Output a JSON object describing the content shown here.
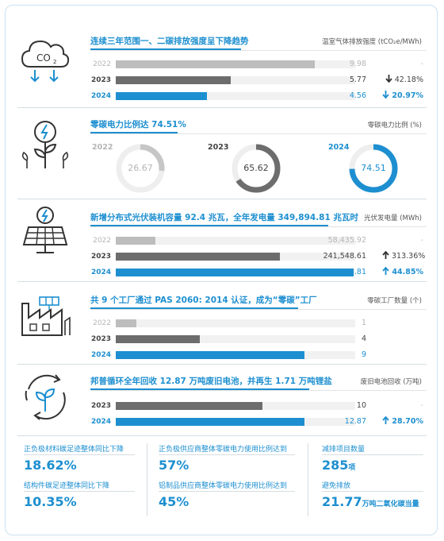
{
  "colors": {
    "accent": "#1d8fd0",
    "grey_2022": "#bdbdbd",
    "grey_2023": "#6d6d6d",
    "text_dark": "#444444"
  },
  "icons": [
    "co2-cloud-icon",
    "green-energy-plant-icon",
    "solar-panel-icon",
    "factory-icon",
    "recycle-plant-icon"
  ],
  "sections": {
    "emission": {
      "title": "连续三年范围一、二碳排放强度呈下降趋势",
      "unit": "温室气体排放强度 (tCO₂e/MWh)"
    },
    "renewable": {
      "title": "零碳电力比例达 74.51%",
      "unit": "零碳电力比例 (%)"
    },
    "solar": {
      "title": "新增分布式光伏装机容量 92.4 兆瓦，全年发电量 349,894.81 兆瓦时",
      "unit": "光伏发电量 (MWh)"
    },
    "factory": {
      "title": "共 9 个工厂通过 PAS 2060: 2014 认证，成为“零碳”工厂",
      "unit": "零碳工厂数量 (个)"
    },
    "battery": {
      "title": "邦普循环全年回收 12.87 万吨废旧电池，并再生 1.71 万吨锂盐",
      "unit": "废旧电池回收 (万吨)"
    }
  },
  "chart_data": [
    {
      "type": "bar",
      "title": "连续三年范围一、二碳排放强度呈下降趋势",
      "ylabel": "温室气体排放强度 (tCO₂e/MWh)",
      "categories": [
        "2022",
        "2023",
        "2024"
      ],
      "values": [
        9.98,
        5.77,
        4.56
      ],
      "value_labels": [
        "9.98",
        "5.77",
        "4.56"
      ],
      "changes": [
        "-",
        "42.18%",
        "20.97%"
      ],
      "change_direction": [
        "none",
        "down",
        "down"
      ],
      "xlim": [
        0,
        12.0
      ]
    },
    {
      "type": "pie",
      "title": "零碳电力比例达 74.51%",
      "ylabel": "零碳电力比例 (%)",
      "categories": [
        "2022",
        "2023",
        "2024"
      ],
      "values": [
        26.67,
        65.62,
        74.51
      ],
      "value_labels": [
        "26.67",
        "65.62",
        "74.51"
      ]
    },
    {
      "type": "bar",
      "title": "新增分布式光伏装机容量 92.4 兆瓦，全年发电量 349,894.81 兆瓦时",
      "ylabel": "光伏发电量 (MWh)",
      "categories": [
        "2022",
        "2023",
        "2024"
      ],
      "values": [
        58435.92,
        241548.61,
        349894.81
      ],
      "value_labels": [
        "58,435.92",
        "241,548.61",
        "349,894.81"
      ],
      "changes": [
        "-",
        "313.36%",
        "44.85%"
      ],
      "change_direction": [
        "none",
        "up",
        "up"
      ],
      "xlim": [
        0,
        352000
      ]
    },
    {
      "type": "bar",
      "title": "共 9 个工厂通过 PAS 2060: 2014 认证，成为“零碳”工厂",
      "ylabel": "零碳工厂数量 (个)",
      "categories": [
        "2022",
        "2023",
        "2024"
      ],
      "values": [
        1,
        4,
        9
      ],
      "value_labels": [
        "1",
        "4",
        "9"
      ],
      "xlim": [
        0,
        11.4
      ]
    },
    {
      "type": "bar",
      "title": "邦普循环全年回收 12.87 万吨废旧电池，并再生 1.71 万吨锂盐",
      "ylabel": "废旧电池回收 (万吨)",
      "categories": [
        "2023",
        "2024"
      ],
      "values": [
        10,
        12.87
      ],
      "value_labels": [
        "10",
        "12.87"
      ],
      "changes": [
        "-",
        "28.70%"
      ],
      "change_direction": [
        "none",
        "up"
      ],
      "xlim": [
        0,
        16.3
      ]
    }
  ],
  "kpis": [
    {
      "label": "正负极材料碳足迹整体同比下降",
      "value": "18.62%",
      "unit": ""
    },
    {
      "label": "正负极供应商整体零碳电力使用比例达到",
      "value": "57%",
      "unit": ""
    },
    {
      "label": "减排项目数量",
      "value": "285",
      "unit": "项"
    },
    {
      "label": "结构件碳足迹整体同比下降",
      "value": "10.35%",
      "unit": ""
    },
    {
      "label": "铝制品供应商整体零碳电力使用比例达到",
      "value": "45%",
      "unit": ""
    },
    {
      "label": "避免排放",
      "value": "21.77",
      "unit": "万吨二氧化碳当量"
    }
  ]
}
